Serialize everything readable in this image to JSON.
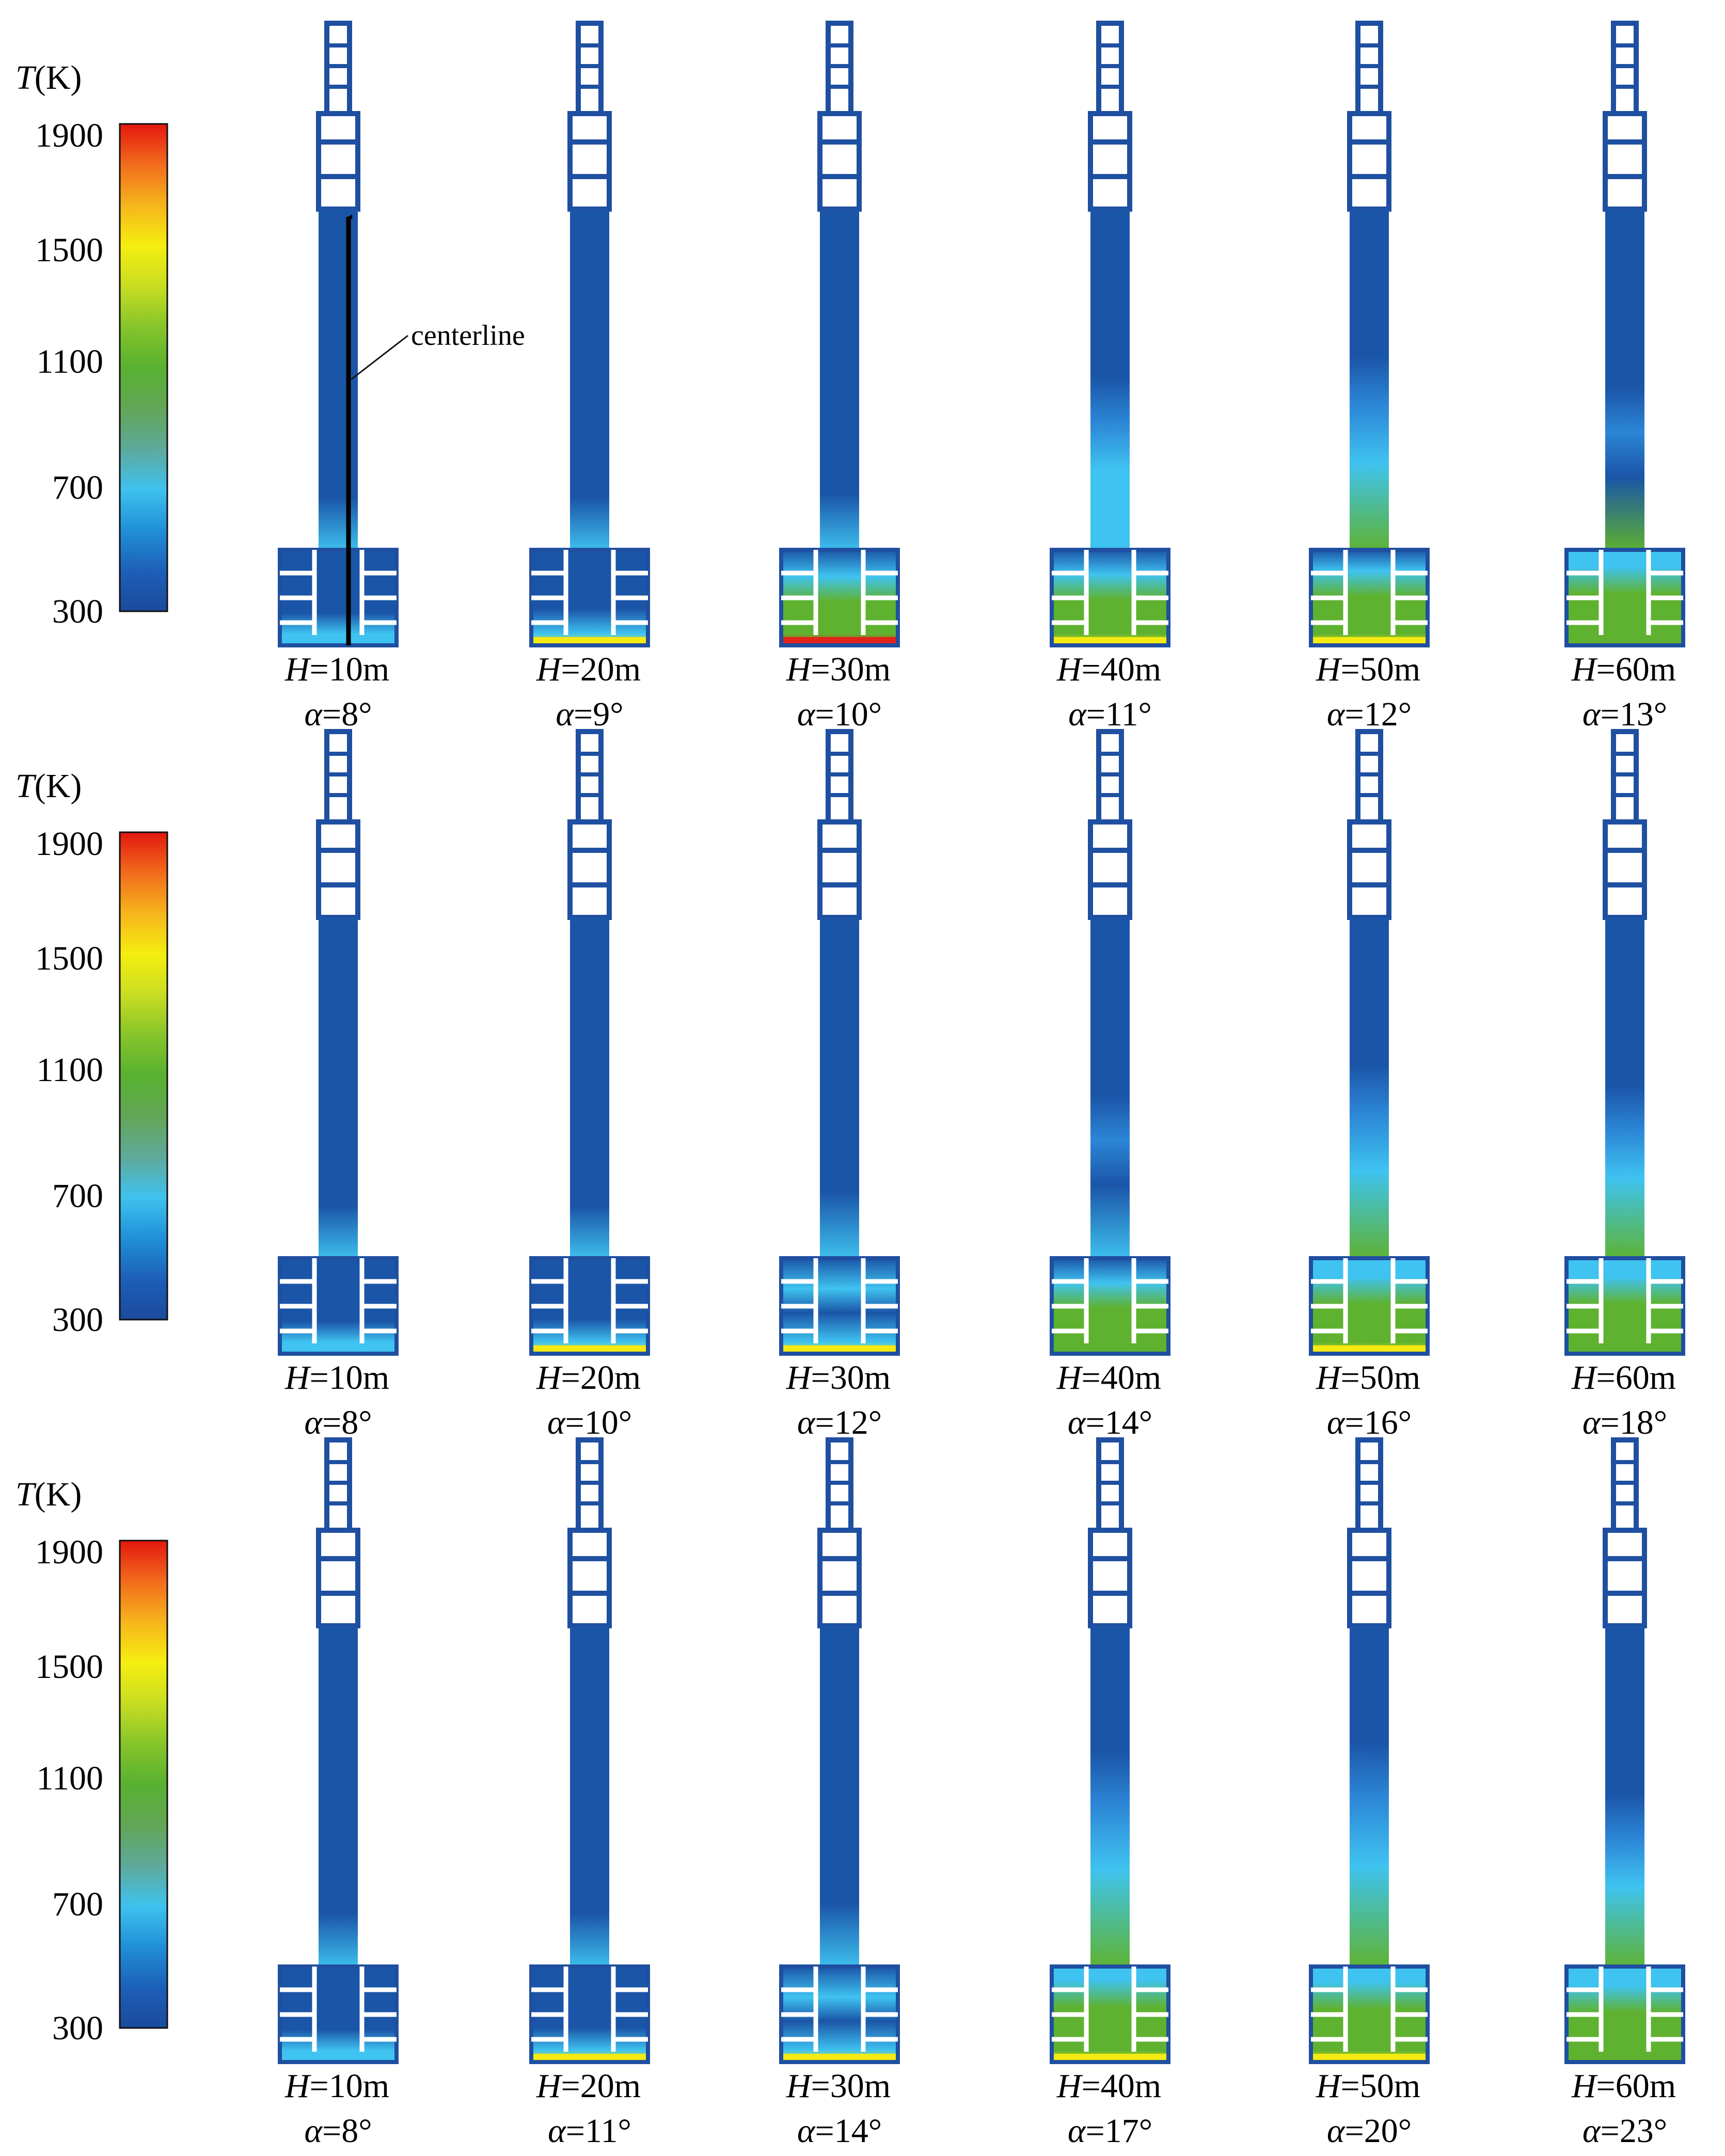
{
  "legend": {
    "title_symbol": "T",
    "title_unit": "(K)",
    "ticks": [
      "1900",
      "1500",
      "1100",
      "700",
      "300"
    ],
    "colormap": [
      "#e3170f",
      "#f26b1c",
      "#f6b51c",
      "#f5ee10",
      "#c9dd22",
      "#86c42a",
      "#58b131",
      "#62a656",
      "#5fa99b",
      "#3ec2ee",
      "#2090d8",
      "#1d5fb8",
      "#1b4a9c"
    ]
  },
  "annotation": {
    "text": "centerline"
  },
  "colors": {
    "structure": "#1f4fa0",
    "cold": "#1b55a8",
    "cyan": "#3fc3f0",
    "green": "#5fb22f",
    "yellow": "#f5ea12",
    "red": "#e2231a",
    "window": "#ffffff",
    "arrow": "#000000"
  },
  "rows": [
    {
      "id": "row-1",
      "panels": [
        {
          "H": "10m",
          "alpha": "8°",
          "plume": 0.05,
          "hot": 0.15,
          "floor": "cyan"
        },
        {
          "H": "20m",
          "alpha": "9°",
          "plume": 0.05,
          "hot": 0.25,
          "floor": "yellow"
        },
        {
          "H": "30m",
          "alpha": "10°",
          "plume": 0.1,
          "hot": 0.55,
          "floor": "red"
        },
        {
          "H": "40m",
          "alpha": "11°",
          "plume": 0.35,
          "hot": 0.6,
          "floor": "yellow"
        },
        {
          "H": "50m",
          "alpha": "12°",
          "plume": 0.45,
          "hot": 0.7,
          "floor": "yellow"
        },
        {
          "H": "60m",
          "alpha": "13°",
          "plume": 0.3,
          "hot": 0.8,
          "floor": "green"
        }
      ]
    },
    {
      "id": "row-2",
      "panels": [
        {
          "H": "10m",
          "alpha": "8°",
          "plume": 0.05,
          "hot": 0.15,
          "floor": "cyan"
        },
        {
          "H": "20m",
          "alpha": "10°",
          "plume": 0.05,
          "hot": 0.2,
          "floor": "yellow"
        },
        {
          "H": "30m",
          "alpha": "12°",
          "plume": 0.2,
          "hot": 0.45,
          "floor": "yellow"
        },
        {
          "H": "40m",
          "alpha": "14°",
          "plume": 0.3,
          "hot": 0.6,
          "floor": "green"
        },
        {
          "H": "50m",
          "alpha": "16°",
          "plume": 0.45,
          "hot": 0.75,
          "floor": "yellow"
        },
        {
          "H": "60m",
          "alpha": "18°",
          "plume": 0.35,
          "hot": 0.75,
          "floor": "green"
        }
      ]
    },
    {
      "id": "row-3",
      "panels": [
        {
          "H": "10m",
          "alpha": "8°",
          "plume": 0.05,
          "hot": 0.15,
          "floor": "cyan"
        },
        {
          "H": "20m",
          "alpha": "11°",
          "plume": 0.05,
          "hot": 0.2,
          "floor": "yellow"
        },
        {
          "H": "30m",
          "alpha": "14°",
          "plume": 0.15,
          "hot": 0.45,
          "floor": "yellow"
        },
        {
          "H": "40m",
          "alpha": "17°",
          "plume": 0.55,
          "hot": 0.9,
          "floor": "yellow"
        },
        {
          "H": "50m",
          "alpha": "20°",
          "plume": 0.6,
          "hot": 0.85,
          "floor": "yellow"
        },
        {
          "H": "60m",
          "alpha": "23°",
          "plume": 0.35,
          "hot": 0.75,
          "floor": "green"
        }
      ]
    }
  ]
}
